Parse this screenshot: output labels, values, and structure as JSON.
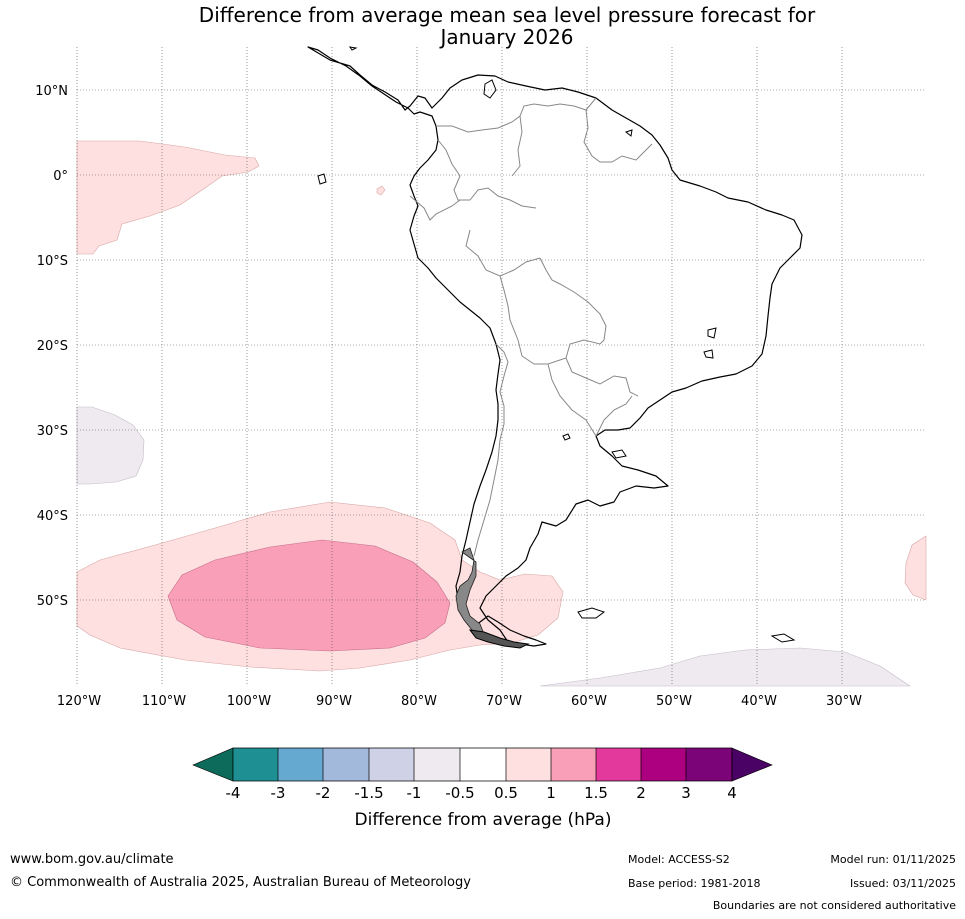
{
  "title": {
    "line1": "Difference from average mean sea level pressure forecast for",
    "line2": "January 2026"
  },
  "map": {
    "lat_labels": [
      "10°N",
      "0°",
      "10°S",
      "20°S",
      "30°S",
      "40°S",
      "50°S"
    ],
    "lon_labels": [
      "120°W",
      "110°W",
      "100°W",
      "90°W",
      "80°W",
      "70°W",
      "60°W",
      "50°W",
      "40°W",
      "30°W"
    ],
    "lat_values": [
      10,
      0,
      -10,
      -20,
      -30,
      -40,
      -50
    ],
    "lon_values": [
      -120,
      -110,
      -100,
      -90,
      -80,
      -70,
      -60,
      -50,
      -40,
      -30
    ],
    "extent": {
      "lon_min": -120,
      "lon_max": -20,
      "lat_min": -60,
      "lat_max": 15
    },
    "anomaly_regions": [
      {
        "name": "eastern-tropical-pacific",
        "category": "0.5 to 1",
        "color": "#fde0df"
      },
      {
        "name": "southeast-pacific",
        "category": "0.5 to 1",
        "color": "#fde0df"
      },
      {
        "name": "southeast-pacific-core",
        "category": "1 to 1.5",
        "color": "#f99fb7"
      },
      {
        "name": "south-atlantic-east",
        "category": "0.5 to 1",
        "color": "#fde0df"
      },
      {
        "name": "southwest-pacific-west",
        "category": "-1 to -0.5",
        "color": "#eeeaf0"
      },
      {
        "name": "south-atlantic-south",
        "category": "-1 to -0.5",
        "color": "#eeeaf0"
      }
    ]
  },
  "colorbar": {
    "title": "Difference from average (hPa)",
    "tick_labels": [
      "-4",
      "-3",
      "-2",
      "-1.5",
      "-1",
      "-0.5",
      "0.5",
      "1",
      "1.5",
      "2",
      "3",
      "4"
    ],
    "colors": [
      "#0d6b5b",
      "#1e9094",
      "#65a9d0",
      "#a3b9db",
      "#cfd1e6",
      "#eeeaf0",
      "#ffffff",
      "#fde0df",
      "#f99fb7",
      "#e3399c",
      "#ad0080",
      "#7b0478",
      "#4a0264"
    ]
  },
  "footer": {
    "website": "www.bom.gov.au/climate",
    "copyright": "© Commonwealth of Australia 2025, Australian Bureau of Meteorology",
    "model": "Model: ACCESS-S2",
    "base_period": "Base period: 1981-2018",
    "model_run": "Model run: 01/11/2025",
    "issued": "Issued: 03/11/2025",
    "disclaimer": "Boundaries are not considered authoritative"
  }
}
